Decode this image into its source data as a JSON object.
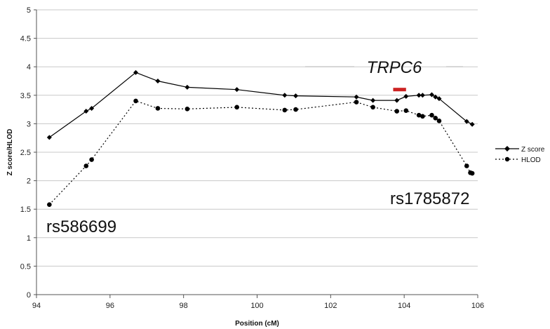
{
  "chart_data": {
    "type": "line",
    "title": "",
    "xlabel": "Position (cM)",
    "ylabel": "Z score/HLOD",
    "xlim": [
      94,
      106
    ],
    "ylim": [
      0,
      5
    ],
    "x_ticks": [
      "94",
      "96",
      "98",
      "100",
      "102",
      "104",
      "106"
    ],
    "y_ticks": [
      "0",
      "0.5",
      "1",
      "1.5",
      "2",
      "2.5",
      "3",
      "3.5",
      "4",
      "4.5",
      "5"
    ],
    "grid": "horizontal",
    "legend_position": "right",
    "series": [
      {
        "name": "Z score",
        "line_style": "solid",
        "marker": "diamond",
        "color": "#000000",
        "x": [
          94.35,
          95.35,
          95.5,
          96.7,
          97.3,
          98.1,
          99.45,
          100.75,
          101.05,
          102.7,
          103.15,
          103.8,
          104.05,
          104.4,
          104.5,
          104.75,
          104.85,
          104.95,
          105.7,
          105.85
        ],
        "y": [
          2.76,
          3.22,
          3.27,
          3.9,
          3.75,
          3.64,
          3.6,
          3.5,
          3.49,
          3.47,
          3.41,
          3.41,
          3.48,
          3.5,
          3.5,
          3.51,
          3.47,
          3.44,
          3.04,
          2.99
        ]
      },
      {
        "name": "HLOD",
        "line_style": "dotted",
        "marker": "circle",
        "color": "#000000",
        "x": [
          94.35,
          95.35,
          95.5,
          96.7,
          97.3,
          98.1,
          99.45,
          100.75,
          101.05,
          102.7,
          103.15,
          103.8,
          104.05,
          104.4,
          104.5,
          104.75,
          104.85,
          104.95,
          105.7,
          105.8,
          105.85
        ],
        "y": [
          1.58,
          2.26,
          2.37,
          3.4,
          3.27,
          3.26,
          3.29,
          3.24,
          3.25,
          3.38,
          3.29,
          3.22,
          3.23,
          3.15,
          3.13,
          3.15,
          3.1,
          3.05,
          2.26,
          2.14,
          2.13
        ]
      }
    ],
    "annotations": [
      {
        "text": "TRPC6",
        "style": "italic"
      },
      {
        "text": "rs1785872"
      },
      {
        "text": "rs586699"
      }
    ],
    "gene_bar": {
      "x_start": 103.7,
      "x_end": 104.05,
      "y": 3.6,
      "color": "#cc2222"
    }
  }
}
